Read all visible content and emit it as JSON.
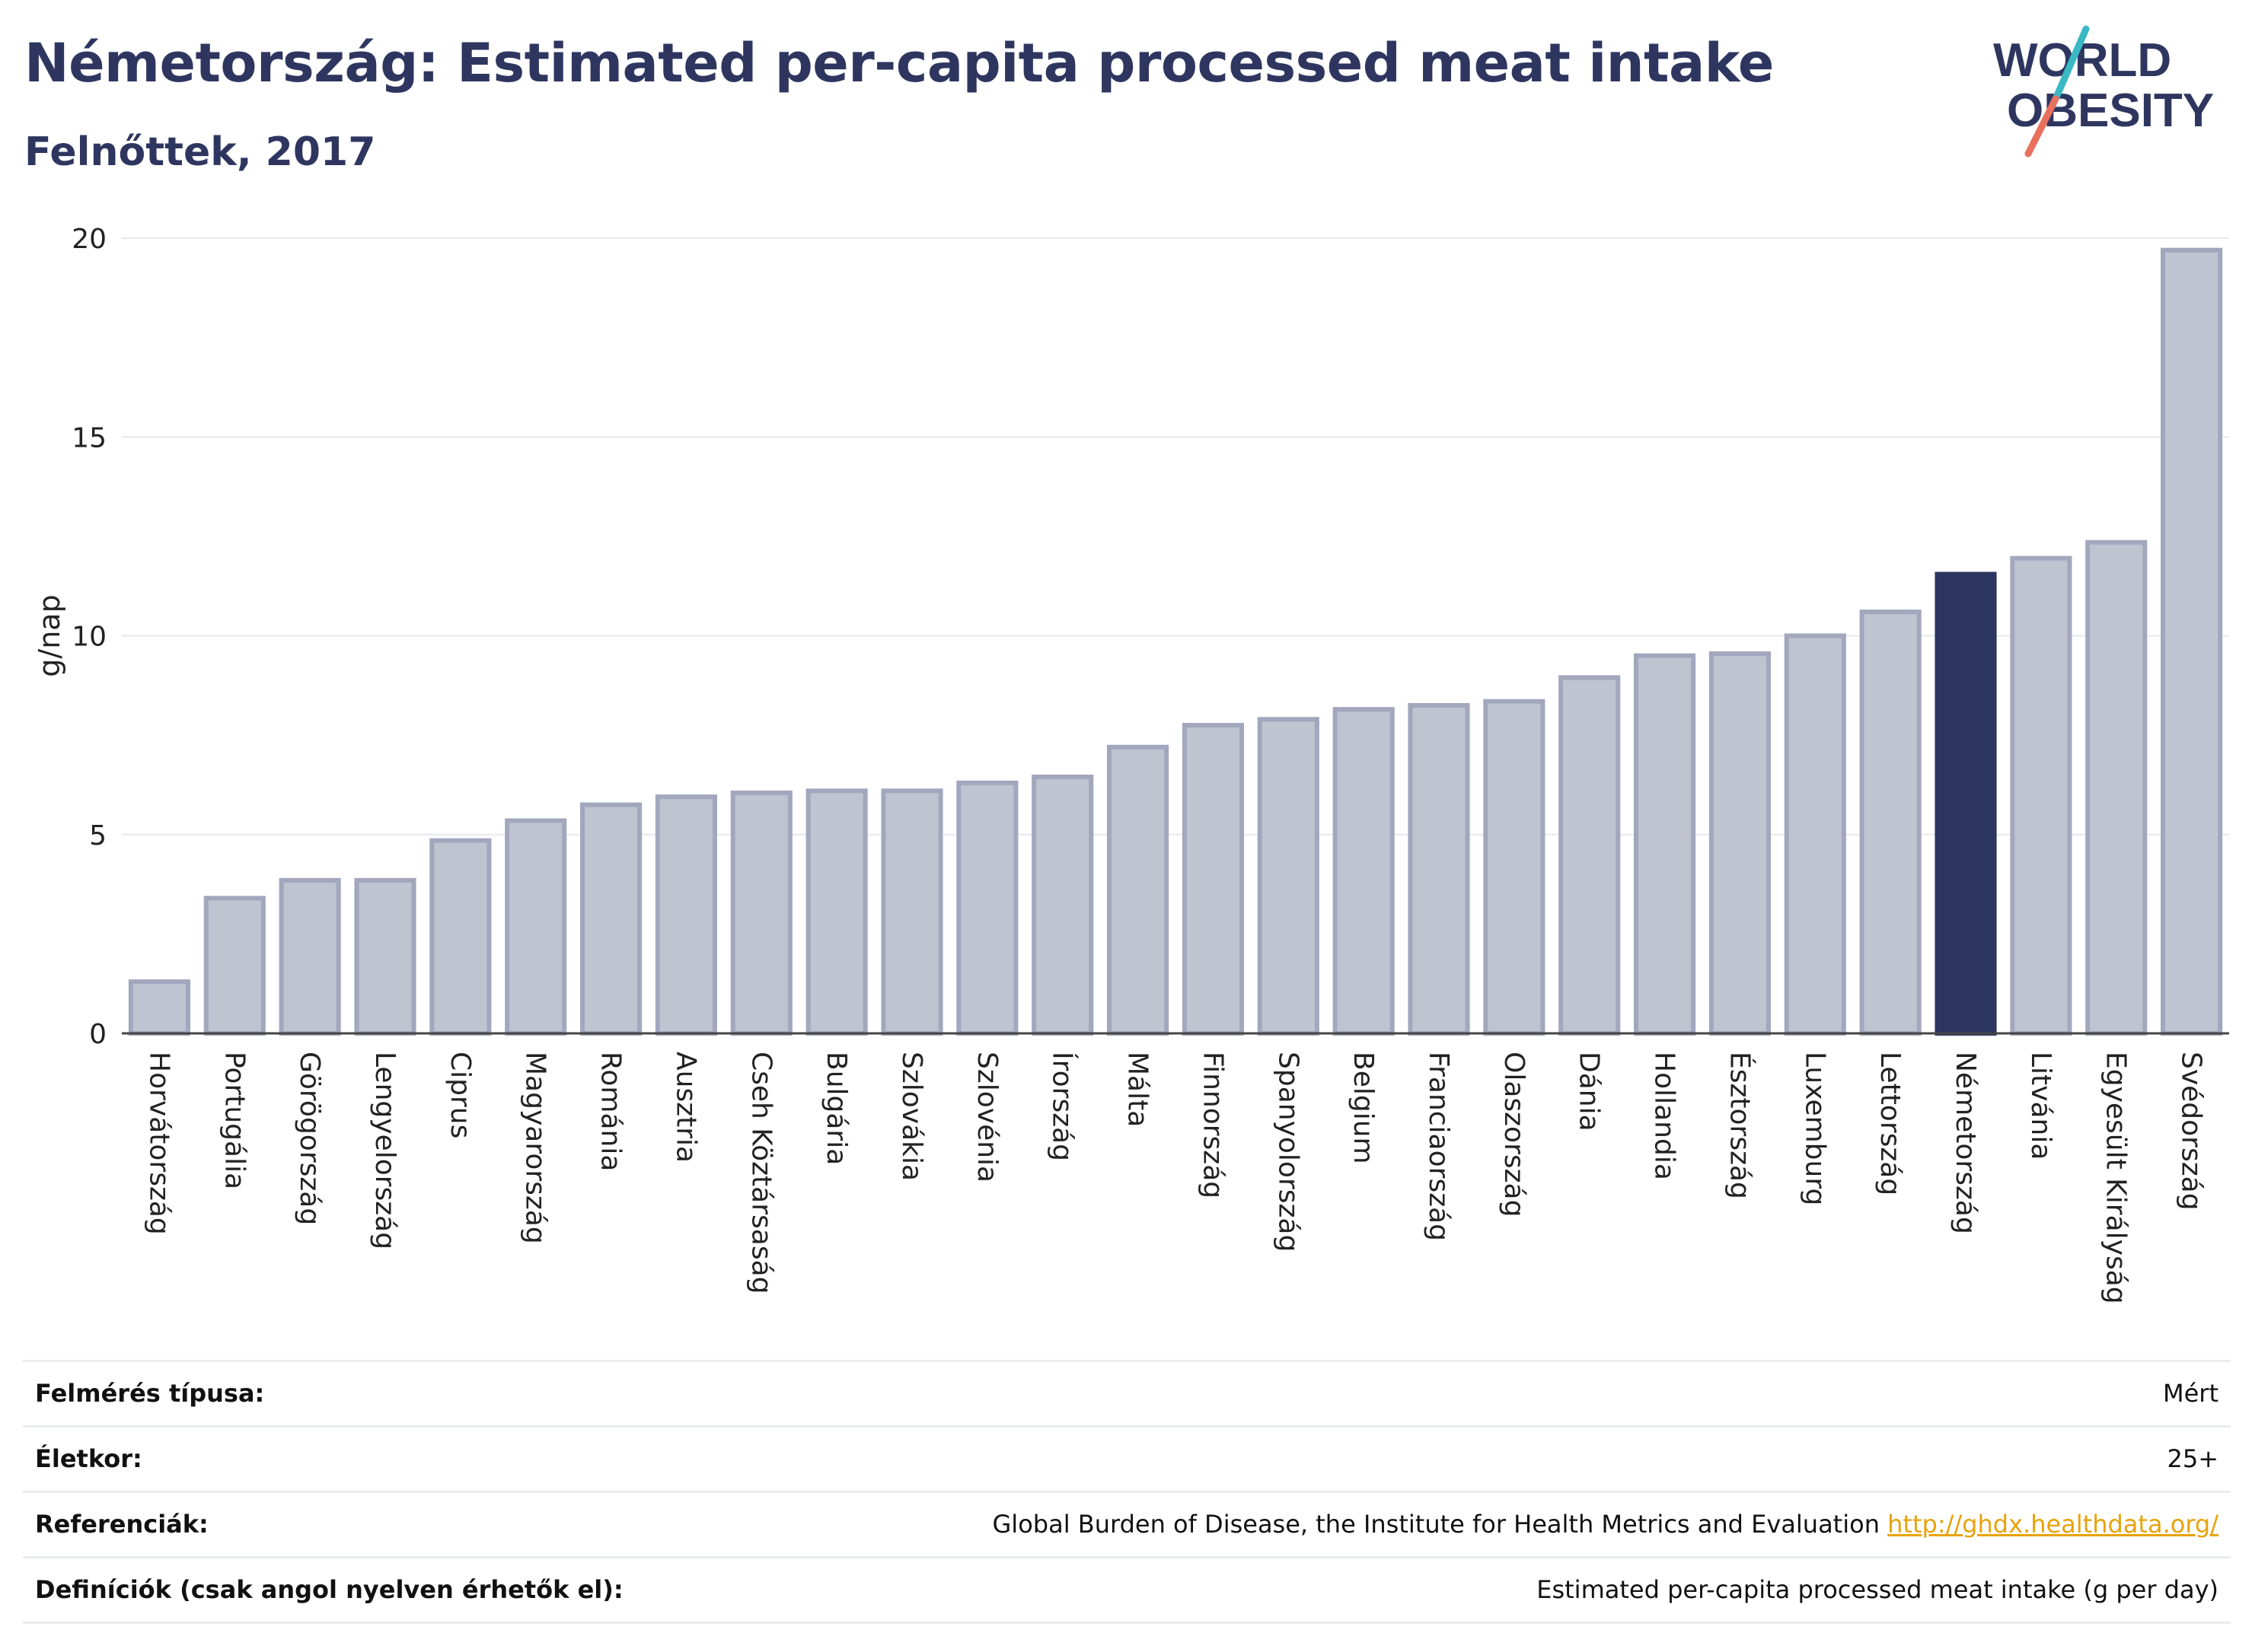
{
  "header": {
    "title": "Németország: Estimated per-capita processed meat intake",
    "subtitle": "Felnőttek, 2017"
  },
  "logo": {
    "line1": "WORLD",
    "line2": "OBESITY",
    "colors": {
      "text": "#2e3660",
      "slash_top": "#3ab8c3",
      "slash_bottom": "#e8705c"
    }
  },
  "chart_data": {
    "type": "bar",
    "ylabel": "g/nap",
    "xlabel": "",
    "ylim": [
      0,
      20
    ],
    "yticks": [
      0,
      5,
      10,
      15,
      20
    ],
    "grid": true,
    "highlight": "Németország",
    "colors": {
      "bar": "#c0c3d0",
      "bar_border": "#a2a7bd",
      "highlight": "#2d3561",
      "grid": "#e6e8ec"
    },
    "categories": [
      "Horvátország",
      "Portugália",
      "Görögország",
      "Lengyelország",
      "Ciprus",
      "Magyarország",
      "Románia",
      "Ausztria",
      "Cseh Köztársaság",
      "Bulgária",
      "Szlovákia",
      "Szlovénia",
      "Írország",
      "Málta",
      "Finnország",
      "Spanyolország",
      "Belgium",
      "Franciaország",
      "Olaszország",
      "Dánia",
      "Hollandia",
      "Észtország",
      "Luxemburg",
      "Lettország",
      "Németország",
      "Litvánia",
      "Egyesült Királyság",
      "Svédország"
    ],
    "values": [
      1.3,
      3.4,
      3.85,
      3.85,
      4.85,
      5.35,
      5.75,
      5.95,
      6.05,
      6.1,
      6.1,
      6.3,
      6.45,
      7.2,
      7.75,
      7.9,
      8.15,
      8.25,
      8.35,
      8.95,
      9.5,
      9.55,
      10.0,
      10.6,
      11.55,
      11.95,
      12.35,
      19.7
    ]
  },
  "meta": {
    "rows": [
      {
        "label": "Felmérés típusa:",
        "value": "Mért"
      },
      {
        "label": "Életkor:",
        "value": "25+"
      },
      {
        "label": "Referenciák:",
        "value": "Global Burden of Disease, the Institute for Health Metrics and Evaluation",
        "link": "http://ghdx.healthdata.org/"
      },
      {
        "label": "Definíciók (csak angol nyelven érhetők el):",
        "value": "Estimated per-capita processed meat intake (g per day)"
      }
    ]
  }
}
